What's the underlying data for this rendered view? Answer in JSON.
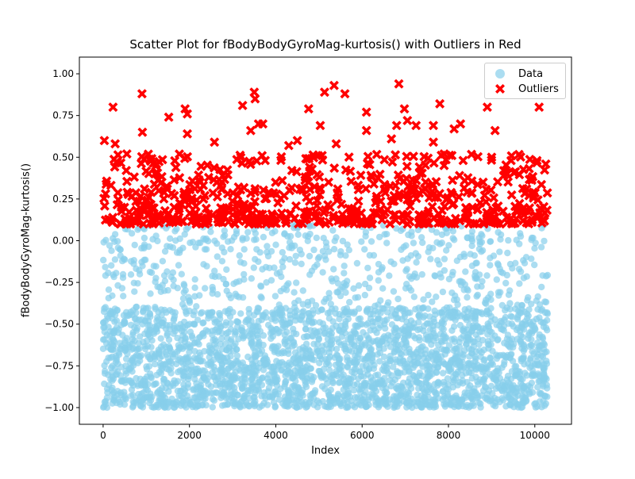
{
  "chart_data": {
    "type": "scatter",
    "title": "Scatter Plot for fBodyBodyGyroMag-kurtosis() with Outliers in Red",
    "xlabel": "Index",
    "ylabel": "fBodyBodyGyroMag-kurtosis()",
    "xlim": [
      -550,
      10850
    ],
    "ylim": [
      -1.1,
      1.1
    ],
    "xticks": [
      0,
      2000,
      4000,
      6000,
      8000,
      10000
    ],
    "yticks": [
      -1.0,
      -0.75,
      -0.5,
      -0.25,
      0.0,
      0.25,
      0.5,
      0.75,
      1.0
    ],
    "ytick_labels": [
      "−1.00",
      "−0.75",
      "−0.50",
      "−0.25",
      "0.00",
      "0.25",
      "0.50",
      "0.75",
      "1.00"
    ],
    "grid": false,
    "legend_position": "top-right",
    "series": [
      {
        "name": "Data",
        "marker": "circle",
        "color": "#87ceeb",
        "alpha": 0.7,
        "n_points": 10299,
        "x_range": [
          0,
          10298
        ],
        "y_range": [
          -1.0,
          0.1
        ]
      },
      {
        "name": "Outliers",
        "marker": "X",
        "color": "#ff0000",
        "y_min": 0.1,
        "y_max": 0.95,
        "points": [
          {
            "x": 230,
            "y": 0.8
          },
          {
            "x": 900,
            "y": 0.88
          },
          {
            "x": 910,
            "y": 0.65
          },
          {
            "x": 30,
            "y": 0.6
          },
          {
            "x": 280,
            "y": 0.58
          },
          {
            "x": 550,
            "y": 0.52
          },
          {
            "x": 1520,
            "y": 0.74
          },
          {
            "x": 1900,
            "y": 0.79
          },
          {
            "x": 1950,
            "y": 0.76
          },
          {
            "x": 1950,
            "y": 0.64
          },
          {
            "x": 2580,
            "y": 0.59
          },
          {
            "x": 3230,
            "y": 0.81
          },
          {
            "x": 3500,
            "y": 0.89
          },
          {
            "x": 3520,
            "y": 0.85
          },
          {
            "x": 3600,
            "y": 0.7
          },
          {
            "x": 3700,
            "y": 0.7
          },
          {
            "x": 3420,
            "y": 0.66
          },
          {
            "x": 4300,
            "y": 0.57
          },
          {
            "x": 4500,
            "y": 0.6
          },
          {
            "x": 4760,
            "y": 0.79
          },
          {
            "x": 5030,
            "y": 0.69
          },
          {
            "x": 5130,
            "y": 0.89
          },
          {
            "x": 5350,
            "y": 0.93
          },
          {
            "x": 5400,
            "y": 0.58
          },
          {
            "x": 5600,
            "y": 0.88
          },
          {
            "x": 6100,
            "y": 0.77
          },
          {
            "x": 6100,
            "y": 0.66
          },
          {
            "x": 6680,
            "y": 0.61
          },
          {
            "x": 6800,
            "y": 0.69
          },
          {
            "x": 6850,
            "y": 0.94
          },
          {
            "x": 6980,
            "y": 0.79
          },
          {
            "x": 7050,
            "y": 0.72
          },
          {
            "x": 7250,
            "y": 0.69
          },
          {
            "x": 7650,
            "y": 0.69
          },
          {
            "x": 7650,
            "y": 0.59
          },
          {
            "x": 7800,
            "y": 0.82
          },
          {
            "x": 7900,
            "y": 0.52
          },
          {
            "x": 8130,
            "y": 0.67
          },
          {
            "x": 8280,
            "y": 0.7
          },
          {
            "x": 8900,
            "y": 0.8
          },
          {
            "x": 9080,
            "y": 0.66
          },
          {
            "x": 9000,
            "y": 0.5
          },
          {
            "x": 9450,
            "y": 0.48
          },
          {
            "x": 10050,
            "y": 0.48
          },
          {
            "x": 10100,
            "y": 0.8
          }
        ]
      }
    ]
  },
  "legend": {
    "items": [
      {
        "label": "Data"
      },
      {
        "label": "Outliers"
      }
    ]
  }
}
